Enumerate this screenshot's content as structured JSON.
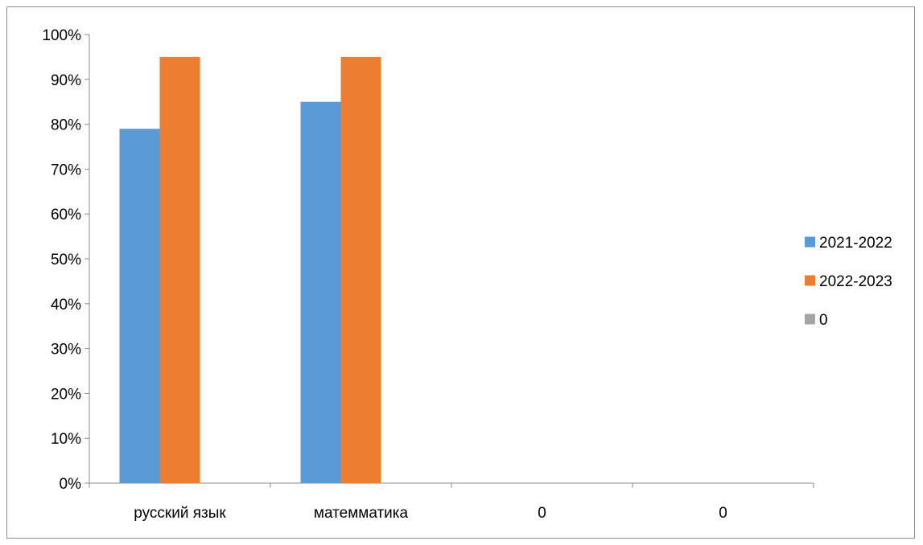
{
  "chart_data": {
    "type": "bar",
    "categories": [
      "русский язык",
      "матемматика",
      "0",
      "0"
    ],
    "series": [
      {
        "name": "2021-2022",
        "values": [
          0.79,
          0.85,
          0,
          0
        ],
        "color": "#5B9BD5"
      },
      {
        "name": "2022-2023",
        "values": [
          0.95,
          0.95,
          0,
          0
        ],
        "color": "#ED7D31"
      },
      {
        "name": "0",
        "values": [
          0,
          0,
          0,
          0
        ],
        "color": "#A5A5A5"
      }
    ],
    "y_ticks": [
      "0%",
      "10%",
      "20%",
      "30%",
      "40%",
      "50%",
      "60%",
      "70%",
      "80%",
      "90%",
      "100%"
    ],
    "ylim": [
      0,
      1
    ],
    "grid": false,
    "legend_position": "right"
  }
}
